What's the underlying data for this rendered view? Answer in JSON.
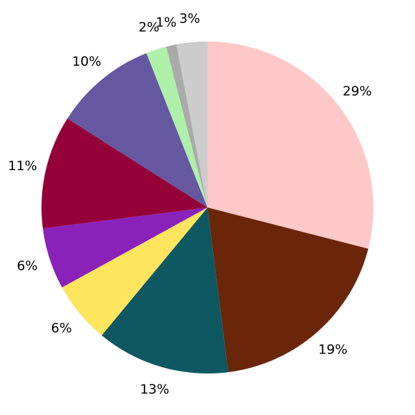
{
  "chart_data": {
    "type": "pie",
    "start": "top",
    "direction": "clockwise",
    "legend": "none",
    "slices": [
      {
        "value": 29,
        "label": "29%",
        "color": "#ffc8c8"
      },
      {
        "value": 19,
        "label": "19%",
        "color": "#6b260a"
      },
      {
        "value": 13,
        "label": "13%",
        "color": "#0e5861"
      },
      {
        "value": 6,
        "label": "6%",
        "color": "#ffe45e"
      },
      {
        "value": 6,
        "label": "6%",
        "color": "#8a22ba"
      },
      {
        "value": 11,
        "label": "11%",
        "color": "#960039"
      },
      {
        "value": 10,
        "label": "10%",
        "color": "#6558a0"
      },
      {
        "value": 2,
        "label": "2%",
        "color": "#aef0a8"
      },
      {
        "value": 1,
        "label": "1%",
        "color": "#aaaaaa"
      },
      {
        "value": 3,
        "label": "3%",
        "color": "#cccccc"
      }
    ]
  }
}
